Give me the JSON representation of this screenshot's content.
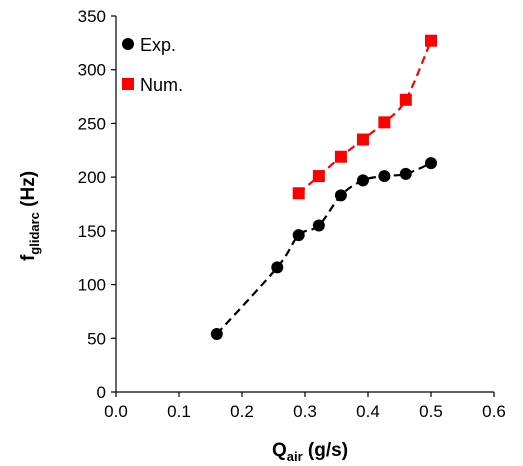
{
  "chart_data": {
    "type": "scatter",
    "xlabel": {
      "main": "Q",
      "sub": "air",
      "rest": " (g/s)"
    },
    "ylabel": {
      "main": "f",
      "sub": "glidarc",
      "rest": " (Hz)"
    },
    "xlim": [
      0.0,
      0.6
    ],
    "ylim": [
      0,
      350
    ],
    "x_ticks": [
      "0.0",
      "0.1",
      "0.2",
      "0.3",
      "0.4",
      "0.5",
      "0.6"
    ],
    "y_ticks": [
      "0",
      "50",
      "100",
      "150",
      "200",
      "250",
      "300",
      "350"
    ],
    "grid": false,
    "legend_position": "top-left",
    "series": [
      {
        "name": "Exp.",
        "marker": "circle",
        "color": "#000000",
        "trendline": "dashed",
        "points": [
          {
            "x": 0.16,
            "y": 54
          },
          {
            "x": 0.256,
            "y": 116
          },
          {
            "x": 0.29,
            "y": 146
          },
          {
            "x": 0.322,
            "y": 155
          },
          {
            "x": 0.357,
            "y": 183
          },
          {
            "x": 0.392,
            "y": 197
          },
          {
            "x": 0.426,
            "y": 201
          },
          {
            "x": 0.46,
            "y": 203
          },
          {
            "x": 0.5,
            "y": 213
          }
        ]
      },
      {
        "name": "Num.",
        "marker": "square",
        "color": "#ff0000",
        "trendline": "dashed",
        "points": [
          {
            "x": 0.29,
            "y": 185
          },
          {
            "x": 0.322,
            "y": 201
          },
          {
            "x": 0.357,
            "y": 219
          },
          {
            "x": 0.392,
            "y": 235
          },
          {
            "x": 0.426,
            "y": 251
          },
          {
            "x": 0.46,
            "y": 272
          },
          {
            "x": 0.5,
            "y": 327
          }
        ]
      }
    ]
  }
}
